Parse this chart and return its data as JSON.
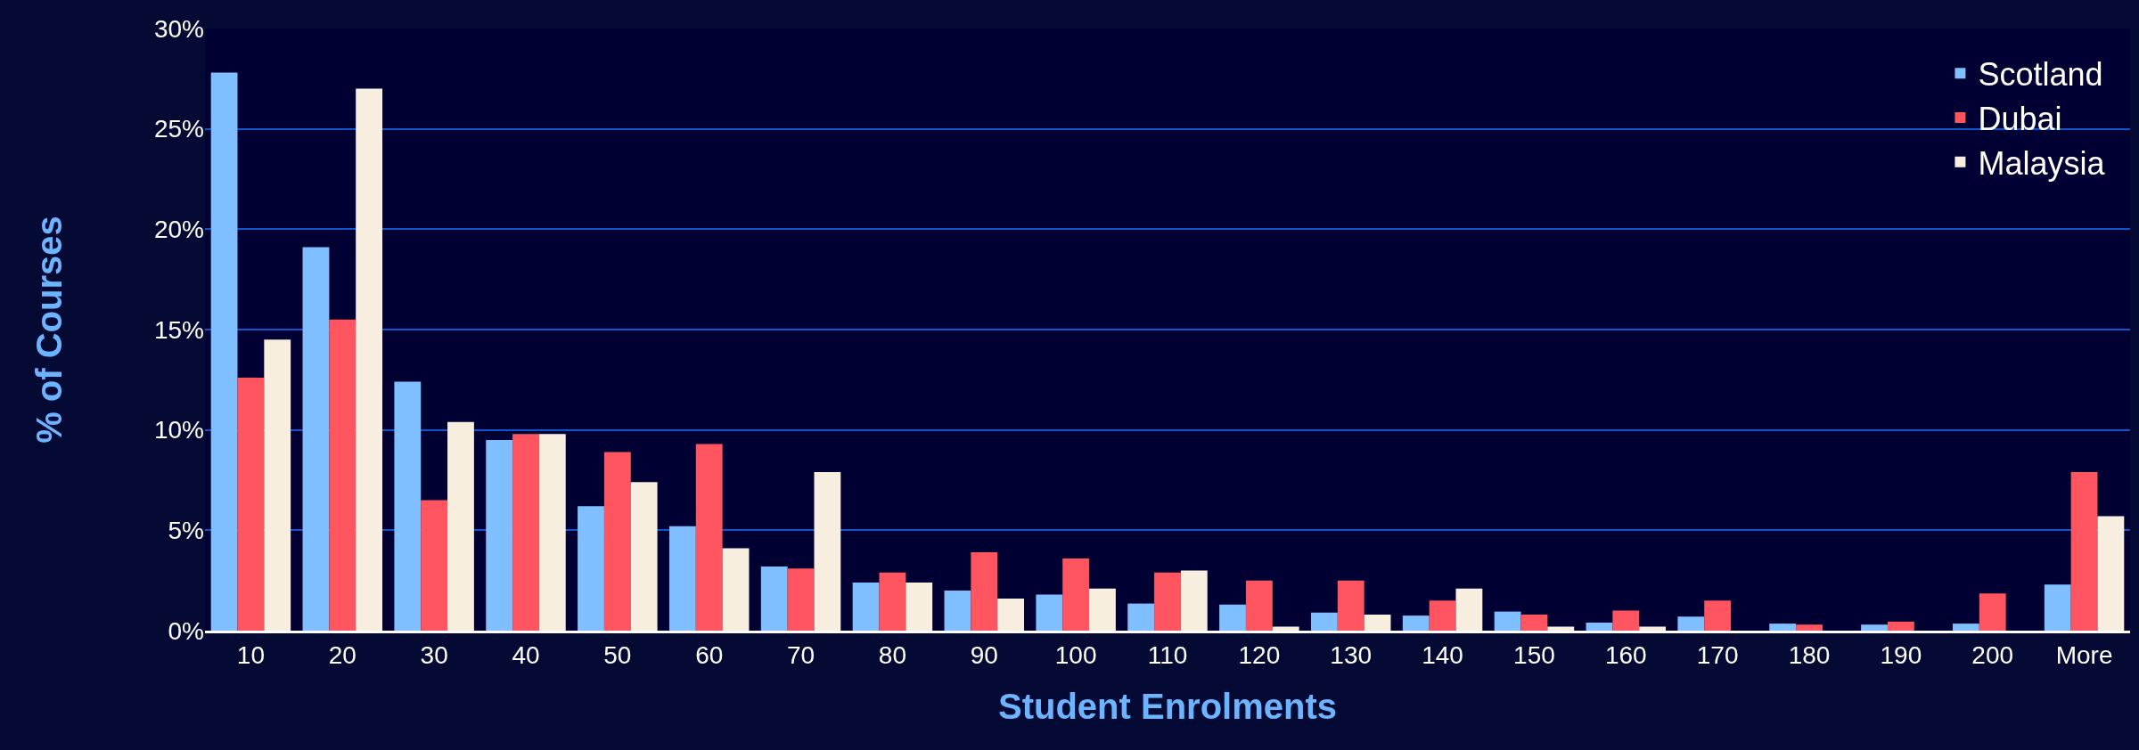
{
  "chart_data": {
    "type": "bar",
    "xlabel": "Student Enrolments",
    "ylabel": "% of Courses",
    "categories": [
      "10",
      "20",
      "30",
      "40",
      "50",
      "60",
      "70",
      "80",
      "90",
      "100",
      "110",
      "120",
      "130",
      "140",
      "150",
      "160",
      "170",
      "180",
      "190",
      "200",
      "More"
    ],
    "series": [
      {
        "name": "Scotland",
        "color": "#7fbfff",
        "values": [
          27.8,
          19.1,
          12.4,
          9.5,
          6.2,
          5.2,
          3.2,
          2.4,
          2.0,
          1.8,
          1.35,
          1.3,
          0.9,
          0.75,
          0.95,
          0.4,
          0.7,
          0.35,
          0.3,
          0.35,
          2.3
        ]
      },
      {
        "name": "Dubai",
        "color": "#ff5560",
        "values": [
          12.6,
          15.5,
          6.5,
          9.8,
          8.9,
          9.3,
          3.1,
          2.9,
          3.9,
          3.6,
          2.9,
          2.5,
          2.5,
          1.5,
          0.8,
          1.0,
          1.5,
          0.3,
          0.45,
          1.85,
          7.9
        ]
      },
      {
        "name": "Malaysia",
        "color": "#f8eee0",
        "values": [
          14.5,
          27.0,
          10.4,
          9.8,
          7.4,
          4.1,
          7.9,
          2.4,
          1.6,
          2.1,
          3.0,
          0.2,
          0.8,
          2.1,
          0.2,
          0.2,
          0,
          0,
          0,
          0,
          5.7
        ]
      }
    ],
    "ylim": [
      0,
      30
    ],
    "yticks": [
      {
        "value": 0,
        "label": "0%"
      },
      {
        "value": 5,
        "label": "5%"
      },
      {
        "value": 10,
        "label": "10%"
      },
      {
        "value": 15,
        "label": "15%"
      },
      {
        "value": 20,
        "label": "20%"
      },
      {
        "value": 25,
        "label": "25%"
      },
      {
        "value": 30,
        "label": "30%"
      }
    ],
    "grid": "y",
    "legend": "top right"
  }
}
